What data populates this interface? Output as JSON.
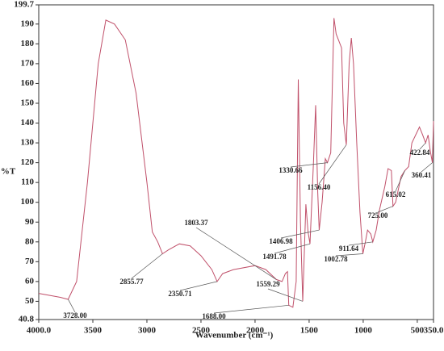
{
  "chart_data": {
    "type": "line",
    "x_label": "Wavenumber (cm⁻¹)",
    "y_label": "%T",
    "x": [
      4000,
      3800,
      3728,
      3650,
      3550,
      3450,
      3380,
      3300,
      3200,
      3100,
      3000,
      2950,
      2900,
      2855.77,
      2800,
      2700,
      2600,
      2500,
      2400,
      2350.71,
      2300,
      2200,
      2000,
      1900,
      1803.37,
      1750,
      1720,
      1700,
      1688,
      1650,
      1620,
      1600,
      1580,
      1559.29,
      1530,
      1510,
      1491.78,
      1460,
      1440,
      1420,
      1406.98,
      1380,
      1350,
      1330.66,
      1300,
      1270,
      1250,
      1200,
      1180,
      1156.4,
      1130,
      1110,
      1090,
      1060,
      1030,
      1002.78,
      980,
      960,
      930,
      911.64,
      880,
      850,
      800,
      770,
      740,
      725,
      700,
      650,
      615.02,
      580,
      550,
      480,
      450,
      422.84,
      400,
      380,
      360.41,
      350
    ],
    "values": [
      54,
      52,
      51,
      60,
      110,
      170,
      192,
      190,
      182,
      155,
      110,
      85,
      80,
      74,
      76,
      79,
      78,
      73,
      66,
      60,
      64,
      66,
      68,
      66,
      61,
      60,
      64,
      65,
      48,
      47,
      60,
      162,
      90,
      50,
      99,
      85,
      79,
      120,
      149,
      105,
      86,
      100,
      122,
      120,
      125,
      193,
      185,
      178,
      140,
      129,
      170,
      183,
      170,
      130,
      95,
      74,
      80,
      86,
      84,
      80,
      86,
      96,
      108,
      117,
      116,
      98,
      100,
      113,
      116,
      118,
      130,
      138,
      134,
      130,
      134,
      126,
      120,
      141
    ],
    "color": "#c0506a",
    "xlim": [
      4000,
      350
    ],
    "ylim": [
      40.8,
      199.7
    ],
    "xticks": [
      {
        "value": 4000,
        "label": "4000.0"
      },
      3500,
      3000,
      2500,
      2000,
      1500,
      1000,
      500,
      {
        "value": 350,
        "label": "350.0"
      }
    ],
    "yticks": [
      40.8,
      50,
      60,
      70,
      80,
      90,
      100,
      110,
      120,
      130,
      140,
      150,
      160,
      170,
      180,
      190,
      199.7
    ],
    "annotations": [
      {
        "value": 3728,
        "label": "3728.00"
      },
      {
        "value": 2855.77,
        "label": "2855.77"
      },
      {
        "value": 2350.71,
        "label": "2350.71"
      },
      {
        "value": 1803.37,
        "label": "1803.37"
      },
      {
        "value": 1688,
        "label": "1688.00"
      },
      {
        "value": 1559.29,
        "label": "1559.29"
      },
      {
        "value": 1491.78,
        "label": "1491.78"
      },
      {
        "value": 1406.98,
        "label": "1406.98"
      },
      {
        "value": 1330.66,
        "label": "1330.66"
      },
      {
        "value": 1156.4,
        "label": "1156.40"
      },
      {
        "value": 1002.78,
        "label": "1002.78"
      },
      {
        "value": 911.64,
        "label": "911.64"
      },
      {
        "value": 725,
        "label": "725.00"
      },
      {
        "value": 615.02,
        "label": "615.02"
      },
      {
        "value": 422.84,
        "label": "422.84"
      },
      {
        "value": 360.41,
        "label": "360.41"
      }
    ]
  }
}
